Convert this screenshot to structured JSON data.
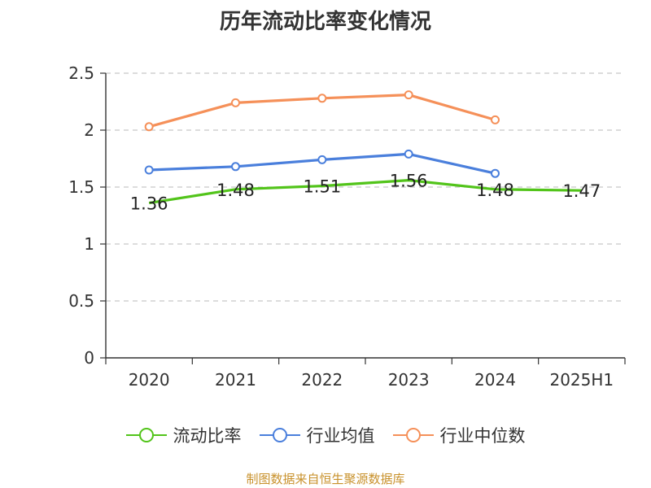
{
  "chart_data": {
    "type": "line",
    "title": "历年流动比率变化情况",
    "categories": [
      "2020",
      "2021",
      "2022",
      "2023",
      "2024",
      "2025H1"
    ],
    "ylim": [
      0,
      2.5
    ],
    "yticks": [
      "0",
      "0.5",
      "1",
      "1.5",
      "2",
      "2.5"
    ],
    "grid": true,
    "legend_position": "bottom",
    "series": [
      {
        "name": "流动比率",
        "color": "#52c41a",
        "values": [
          1.36,
          1.48,
          1.51,
          1.56,
          1.48,
          1.47
        ],
        "labels": [
          "1.36",
          "1.48",
          "1.51",
          "1.56",
          "1.48",
          "1.47"
        ]
      },
      {
        "name": "行业均值",
        "color": "#4a7fdc",
        "values": [
          1.65,
          1.68,
          1.74,
          1.79,
          1.62,
          null
        ]
      },
      {
        "name": "行业中位数",
        "color": "#f59059",
        "values": [
          2.03,
          2.24,
          2.28,
          2.31,
          2.09,
          null
        ]
      }
    ]
  },
  "footer": {
    "source": "制图数据来自恒生聚源数据库"
  }
}
